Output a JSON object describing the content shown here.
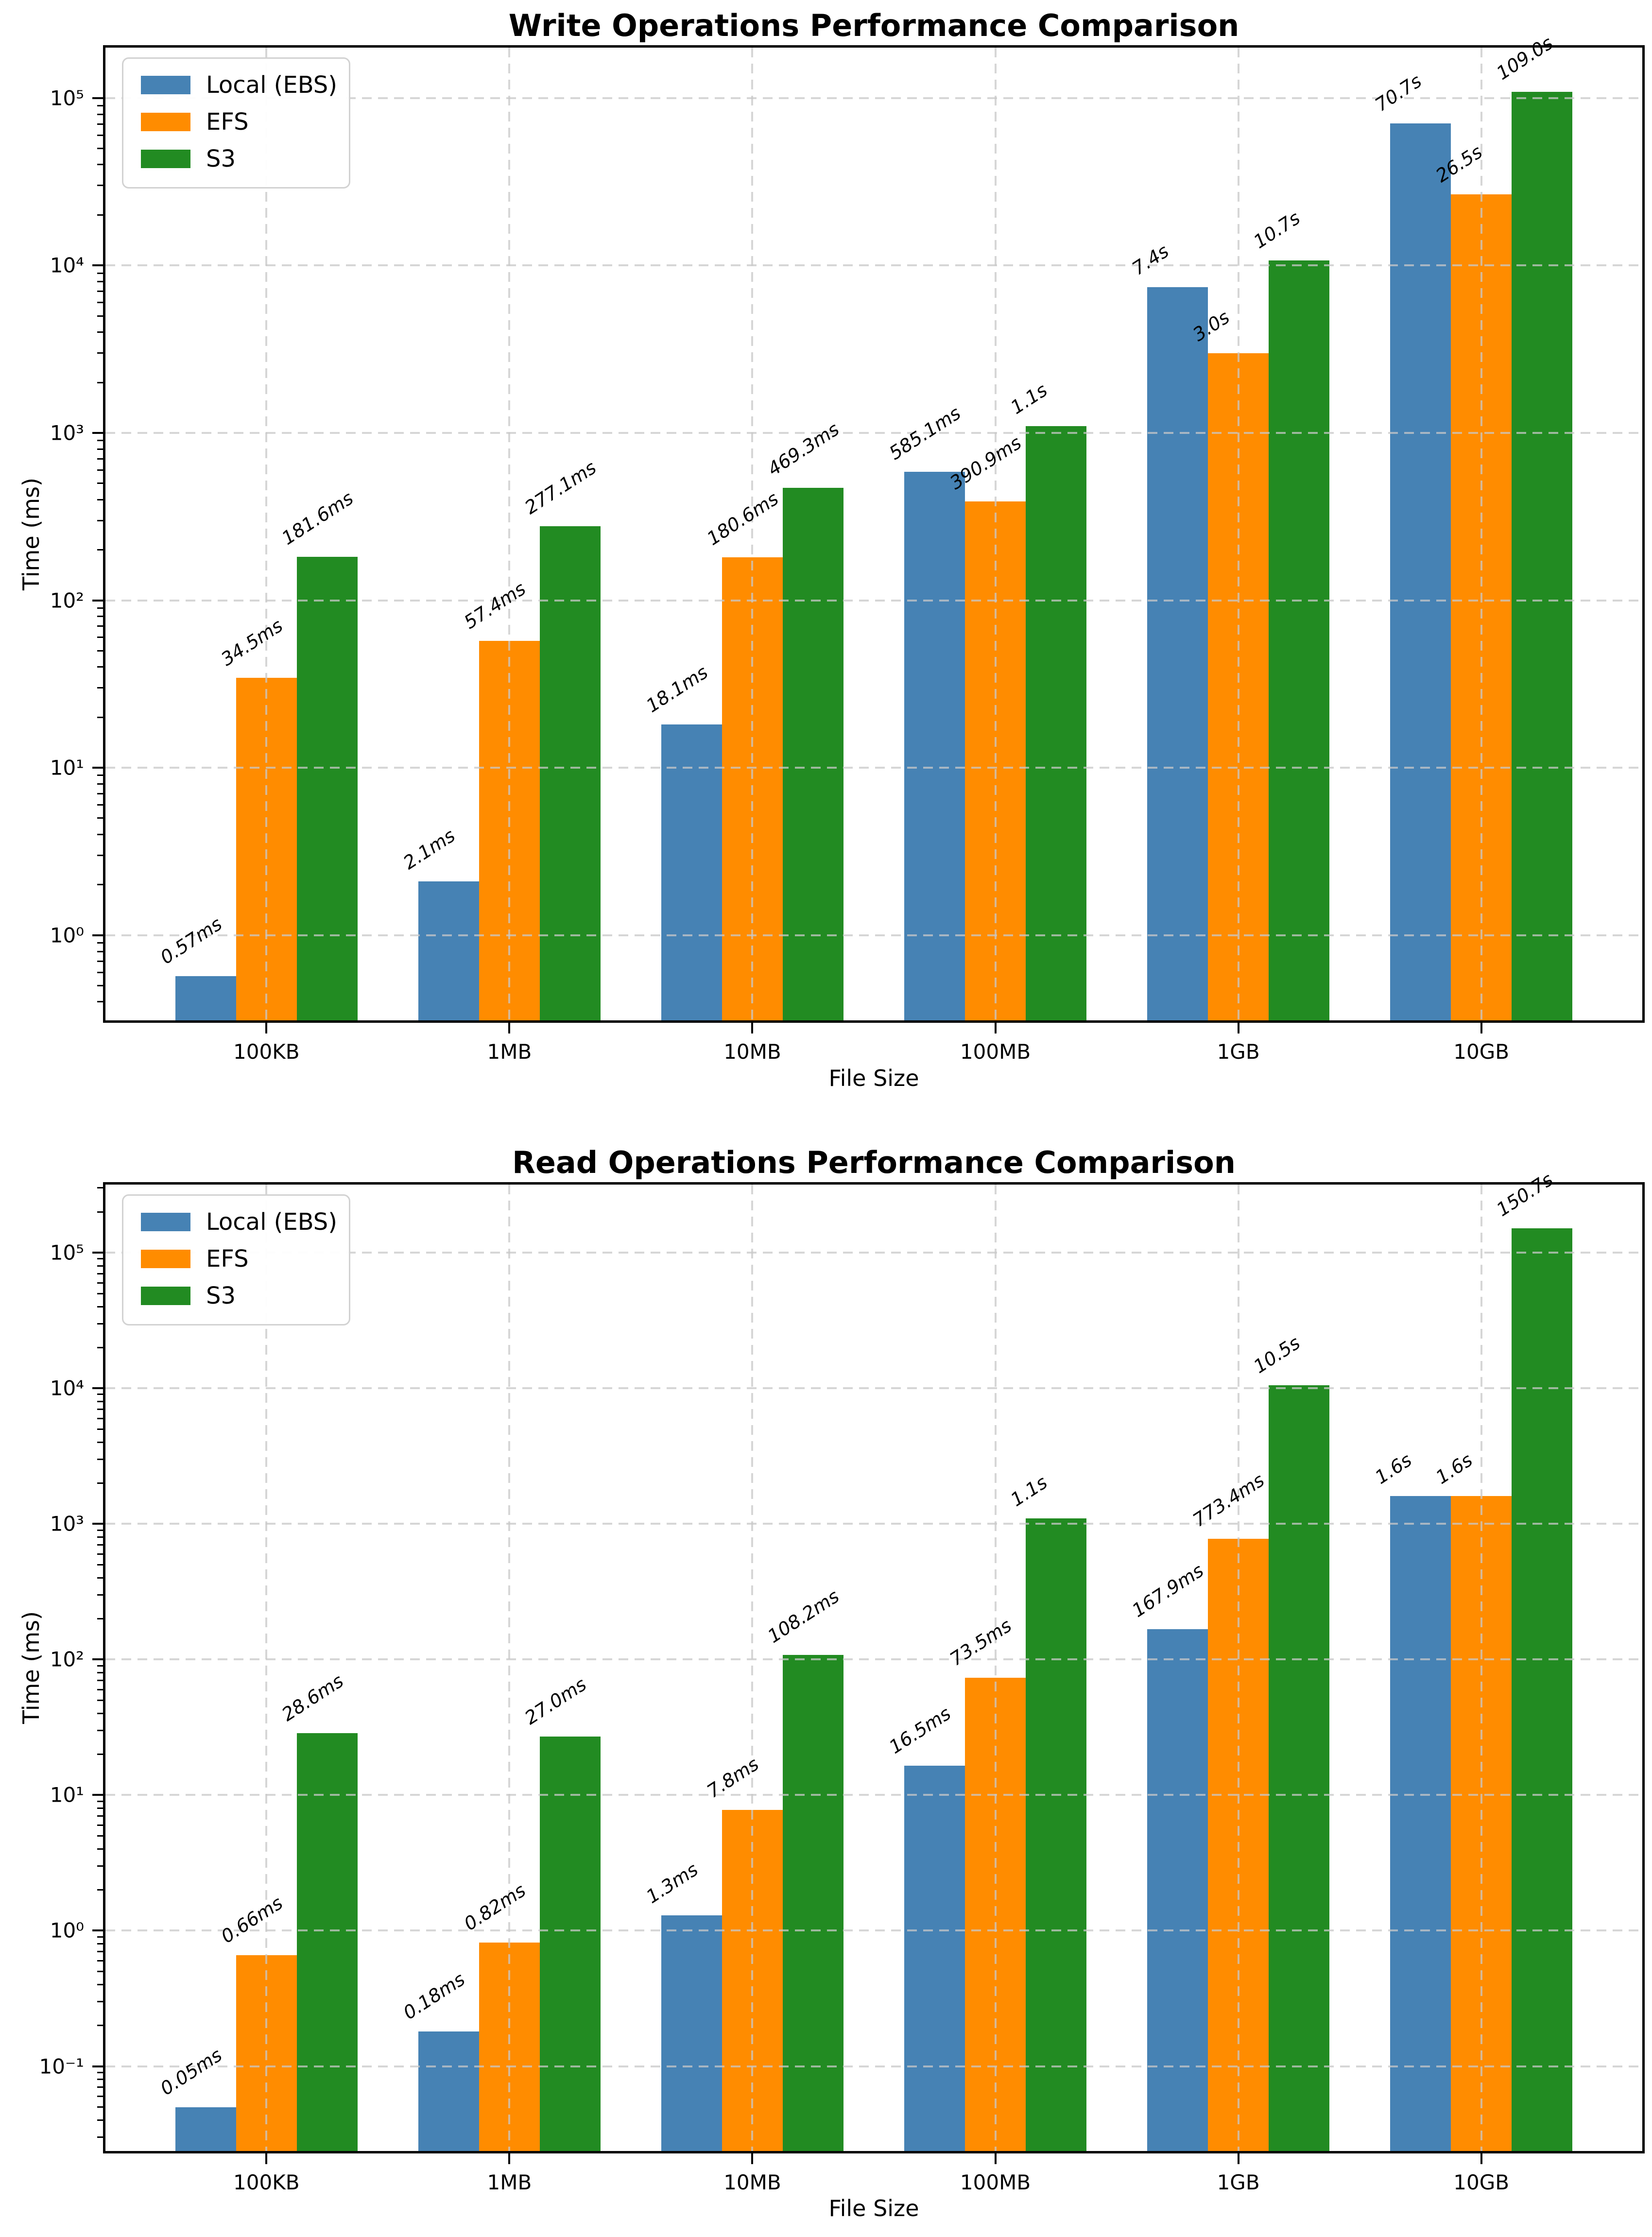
{
  "legend": {
    "items": [
      {
        "label": "Local (EBS)",
        "color": "#4682B4"
      },
      {
        "label": "EFS",
        "color": "#FF8C00"
      },
      {
        "label": "S3",
        "color": "#228B22"
      }
    ]
  },
  "chart_data": [
    {
      "type": "bar",
      "title": "Write Operations Performance Comparison",
      "xlabel": "File Size",
      "ylabel": "Time (ms)",
      "yscale": "log",
      "grid": true,
      "legend_position": "upper-left",
      "categories": [
        "100KB",
        "1MB",
        "10MB",
        "100MB",
        "1GB",
        "10GB"
      ],
      "ylim": [
        0.31,
        200000
      ],
      "yticks": [
        {
          "value": 1,
          "label": "10⁰"
        },
        {
          "value": 10,
          "label": "10¹"
        },
        {
          "value": 100,
          "label": "10²"
        },
        {
          "value": 1000,
          "label": "10³"
        },
        {
          "value": 10000,
          "label": "10⁴"
        },
        {
          "value": 100000,
          "label": "10⁵"
        }
      ],
      "series": [
        {
          "name": "Local (EBS)",
          "color": "#4682B4",
          "values_ms": [
            0.57,
            2.1,
            18.1,
            585.1,
            7400,
            70700
          ],
          "labels": [
            "0.57ms",
            "2.1ms",
            "18.1ms",
            "585.1ms",
            "7.4s",
            "70.7s"
          ]
        },
        {
          "name": "EFS",
          "color": "#FF8C00",
          "values_ms": [
            34.5,
            57.4,
            180.6,
            390.9,
            3000,
            26500
          ],
          "labels": [
            "34.5ms",
            "57.4ms",
            "180.6ms",
            "390.9ms",
            "3.0s",
            "26.5s"
          ]
        },
        {
          "name": "S3",
          "color": "#228B22",
          "values_ms": [
            181.6,
            277.1,
            469.3,
            1100,
            10700,
            109000
          ],
          "labels": [
            "181.6ms",
            "277.1ms",
            "469.3ms",
            "1.1s",
            "10.7s",
            "109.0s"
          ]
        }
      ]
    },
    {
      "type": "bar",
      "title": "Read Operations Performance Comparison",
      "xlabel": "File Size",
      "ylabel": "Time (ms)",
      "yscale": "log",
      "grid": true,
      "legend_position": "upper-left",
      "categories": [
        "100KB",
        "1MB",
        "10MB",
        "100MB",
        "1GB",
        "10GB"
      ],
      "ylim": [
        0.0237,
        317700
      ],
      "yticks": [
        {
          "value": 0.1,
          "label": "10⁻¹"
        },
        {
          "value": 1,
          "label": "10⁰"
        },
        {
          "value": 10,
          "label": "10¹"
        },
        {
          "value": 100,
          "label": "10²"
        },
        {
          "value": 1000,
          "label": "10³"
        },
        {
          "value": 10000,
          "label": "10⁴"
        },
        {
          "value": 100000,
          "label": "10⁵"
        }
      ],
      "series": [
        {
          "name": "Local (EBS)",
          "color": "#4682B4",
          "values_ms": [
            0.05,
            0.18,
            1.3,
            16.5,
            167.9,
            1600
          ],
          "labels": [
            "0.05ms",
            "0.18ms",
            "1.3ms",
            "16.5ms",
            "167.9ms",
            "1.6s"
          ]
        },
        {
          "name": "EFS",
          "color": "#FF8C00",
          "values_ms": [
            0.66,
            0.82,
            7.8,
            73.5,
            773.4,
            1600
          ],
          "labels": [
            "0.66ms",
            "0.82ms",
            "7.8ms",
            "73.5ms",
            "773.4ms",
            "1.6s"
          ]
        },
        {
          "name": "S3",
          "color": "#228B22",
          "values_ms": [
            28.6,
            27.0,
            108.2,
            1100,
            10500,
            150700
          ],
          "labels": [
            "28.6ms",
            "27.0ms",
            "108.2ms",
            "1.1s",
            "10.5s",
            "150.7s"
          ]
        }
      ]
    }
  ]
}
